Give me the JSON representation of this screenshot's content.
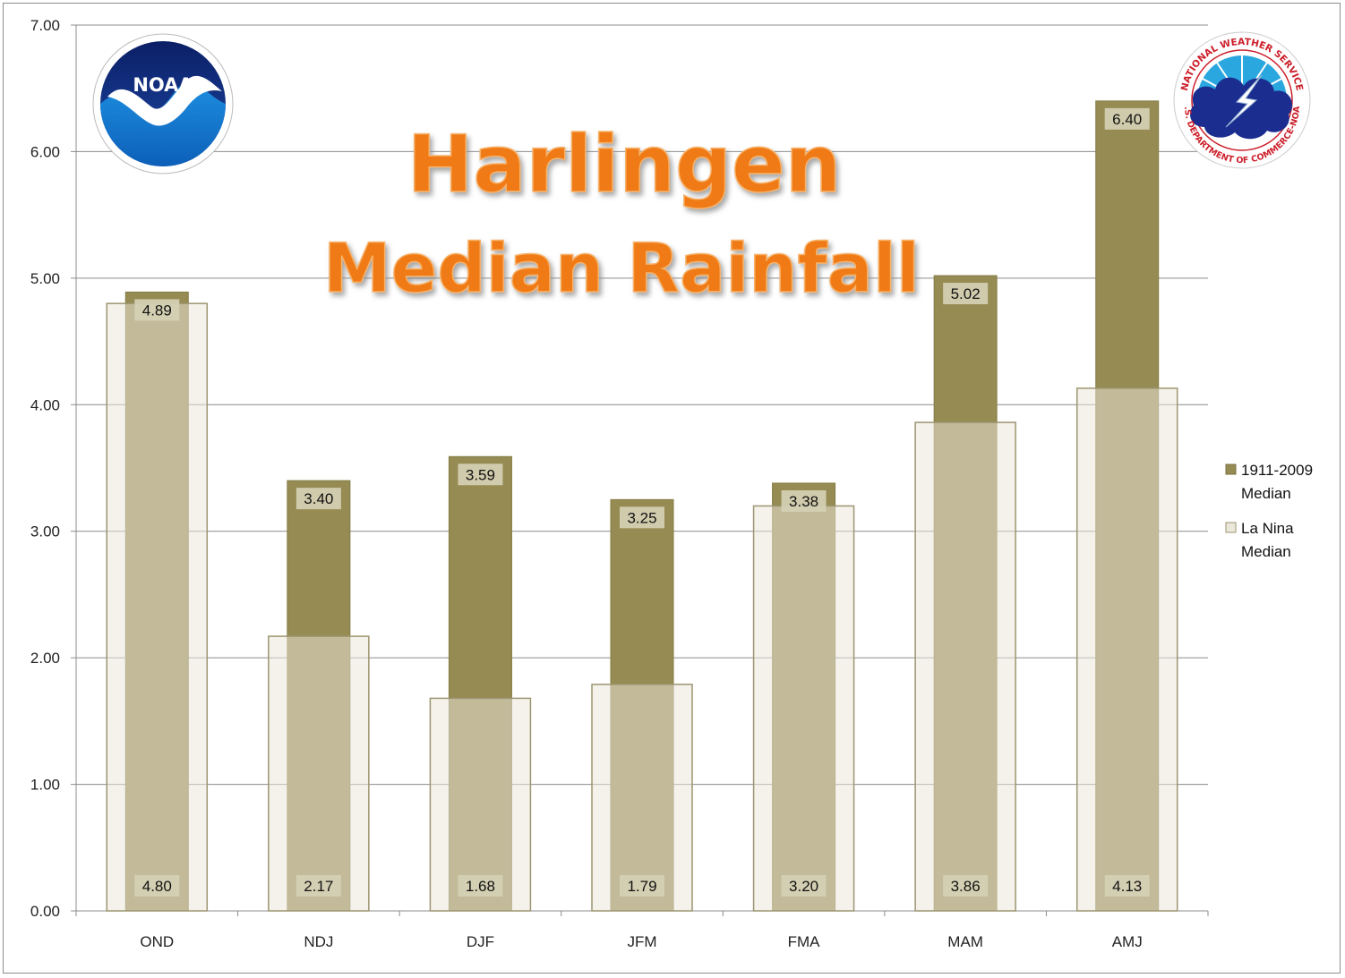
{
  "chart_data": {
    "type": "bar",
    "title": "Harlingen",
    "subtitle": "Median Rainfall",
    "xlabel": "",
    "ylabel": "",
    "ylim": [
      0,
      7
    ],
    "yticks": [
      "0.00",
      "1.00",
      "2.00",
      "3.00",
      "4.00",
      "5.00",
      "6.00",
      "7.00"
    ],
    "categories": [
      "OND",
      "NDJ",
      "DJF",
      "JFM",
      "FMA",
      "MAM",
      "AMJ"
    ],
    "series": [
      {
        "name": "La Nina Median",
        "legend_lines": [
          "La Nina",
          "Median"
        ],
        "color": "#ebe7da",
        "values": [
          4.8,
          2.17,
          1.68,
          1.79,
          3.2,
          3.86,
          4.13
        ],
        "labels": [
          "4.80",
          "2.17",
          "1.68",
          "1.79",
          "3.20",
          "3.86",
          "4.13"
        ]
      },
      {
        "name": "1911-2009 Median",
        "legend_lines": [
          "1911-2009",
          "Median"
        ],
        "color": "#958b53",
        "values": [
          4.89,
          3.4,
          3.59,
          3.25,
          3.38,
          5.02,
          6.4
        ],
        "labels": [
          "4.89",
          "3.40",
          "3.59",
          "3.25",
          "3.38",
          "5.02",
          "6.40"
        ]
      }
    ],
    "grid": true,
    "legend_placement": "right"
  },
  "logos": {
    "noaa_text": "NOAA",
    "nws_text": "NATIONAL WEATHER SERVICE",
    "nws_bottom_text": "U.S. DEPARTMENT OF COMMERCE-NOAA"
  }
}
